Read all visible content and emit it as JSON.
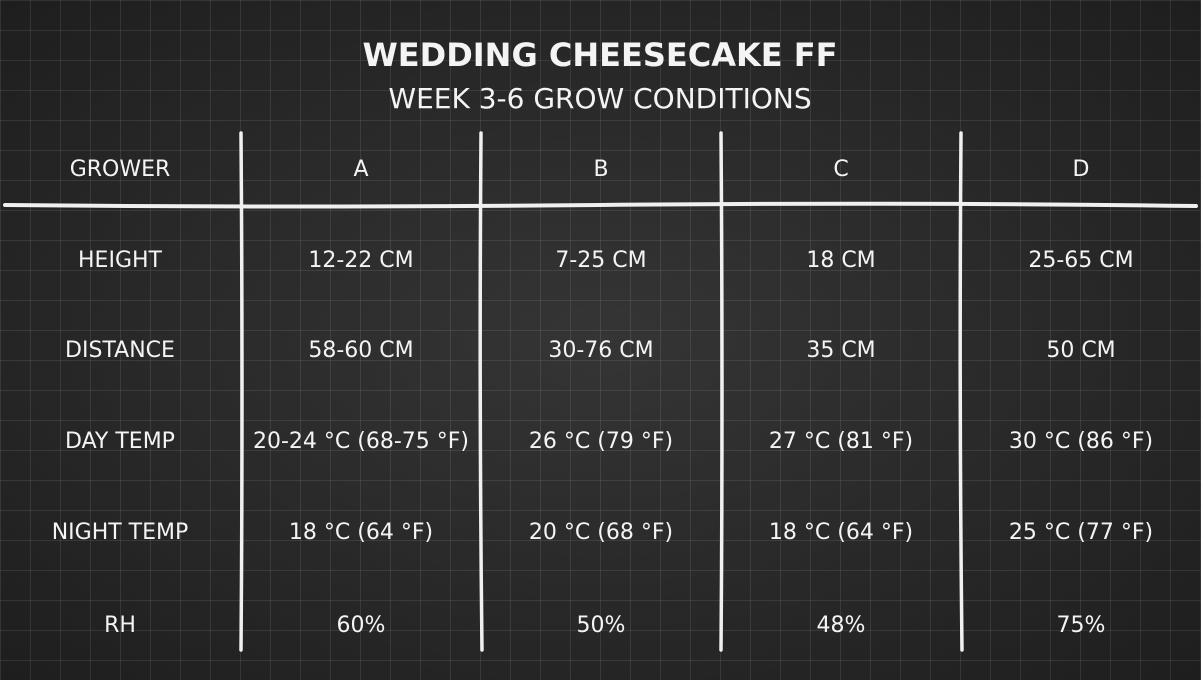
{
  "header": {
    "title": "WEDDING CHEESECAKE FF",
    "subtitle": "WEEK 3-6 GROW CONDITIONS"
  },
  "table": {
    "columns": [
      "GROWER",
      "A",
      "B",
      "C",
      "D"
    ],
    "rows": [
      [
        "HEIGHT",
        "12-22 CM",
        "7-25 CM",
        "18 CM",
        "25-65 CM"
      ],
      [
        "DISTANCE",
        "58-60 CM",
        "30-76 CM",
        "35 CM",
        "50 CM"
      ],
      [
        "DAY TEMP",
        "20-24 °C (68-75 °F)",
        "26 °C (79 °F)",
        "27 °C (81 °F)",
        "30 °C (86 °F)"
      ],
      [
        "NIGHT TEMP",
        "18 °C (64 °F)",
        "20 °C (68 °F)",
        "18 °C (64 °F)",
        "25 °C (77 °F)"
      ],
      [
        "RH",
        "60%",
        "50%",
        "48%",
        "75%"
      ]
    ]
  }
}
